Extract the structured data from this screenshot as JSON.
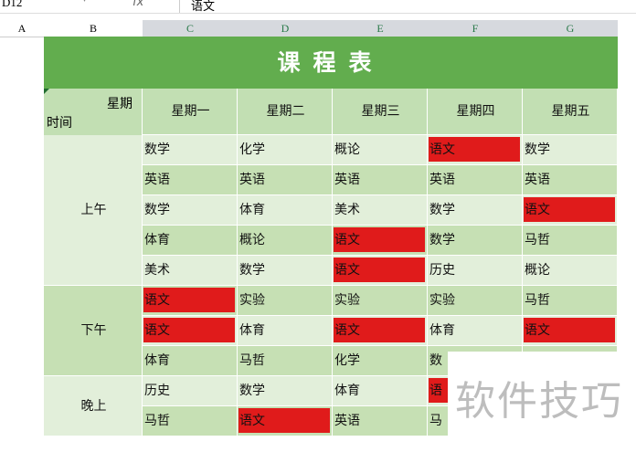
{
  "formula_bar": {
    "cell_ref": "D12",
    "fx": "fx",
    "value": "语文"
  },
  "columns": [
    "A",
    "B",
    "C",
    "D",
    "E",
    "F",
    "G"
  ],
  "title": "课程表",
  "corner": {
    "top": "星期",
    "bottom": "时间"
  },
  "days": [
    "星期一",
    "星期二",
    "星期三",
    "星期四",
    "星期五"
  ],
  "periods": [
    "上午",
    "下午",
    "晚上"
  ],
  "rows": [
    [
      "数学",
      "化学",
      "概论",
      "语文",
      "数学"
    ],
    [
      "英语",
      "英语",
      "英语",
      "英语",
      "英语"
    ],
    [
      "数学",
      "体育",
      "美术",
      "数学",
      "语文"
    ],
    [
      "体育",
      "概论",
      "语文",
      "数学",
      "马哲"
    ],
    [
      "美术",
      "数学",
      "语文",
      "历史",
      "概论"
    ],
    [
      "语文",
      "实验",
      "实验",
      "实验",
      "马哲"
    ],
    [
      "语文",
      "体育",
      "语文",
      "体育",
      "语文"
    ],
    [
      "体育",
      "马哲",
      "化学",
      "数",
      ""
    ],
    [
      "历史",
      "数学",
      "体育",
      "语",
      ""
    ],
    [
      "马哲",
      "语文",
      "英语",
      "马",
      ""
    ]
  ],
  "highlight_color": "#e01b1b",
  "watermark": "软件技巧"
}
